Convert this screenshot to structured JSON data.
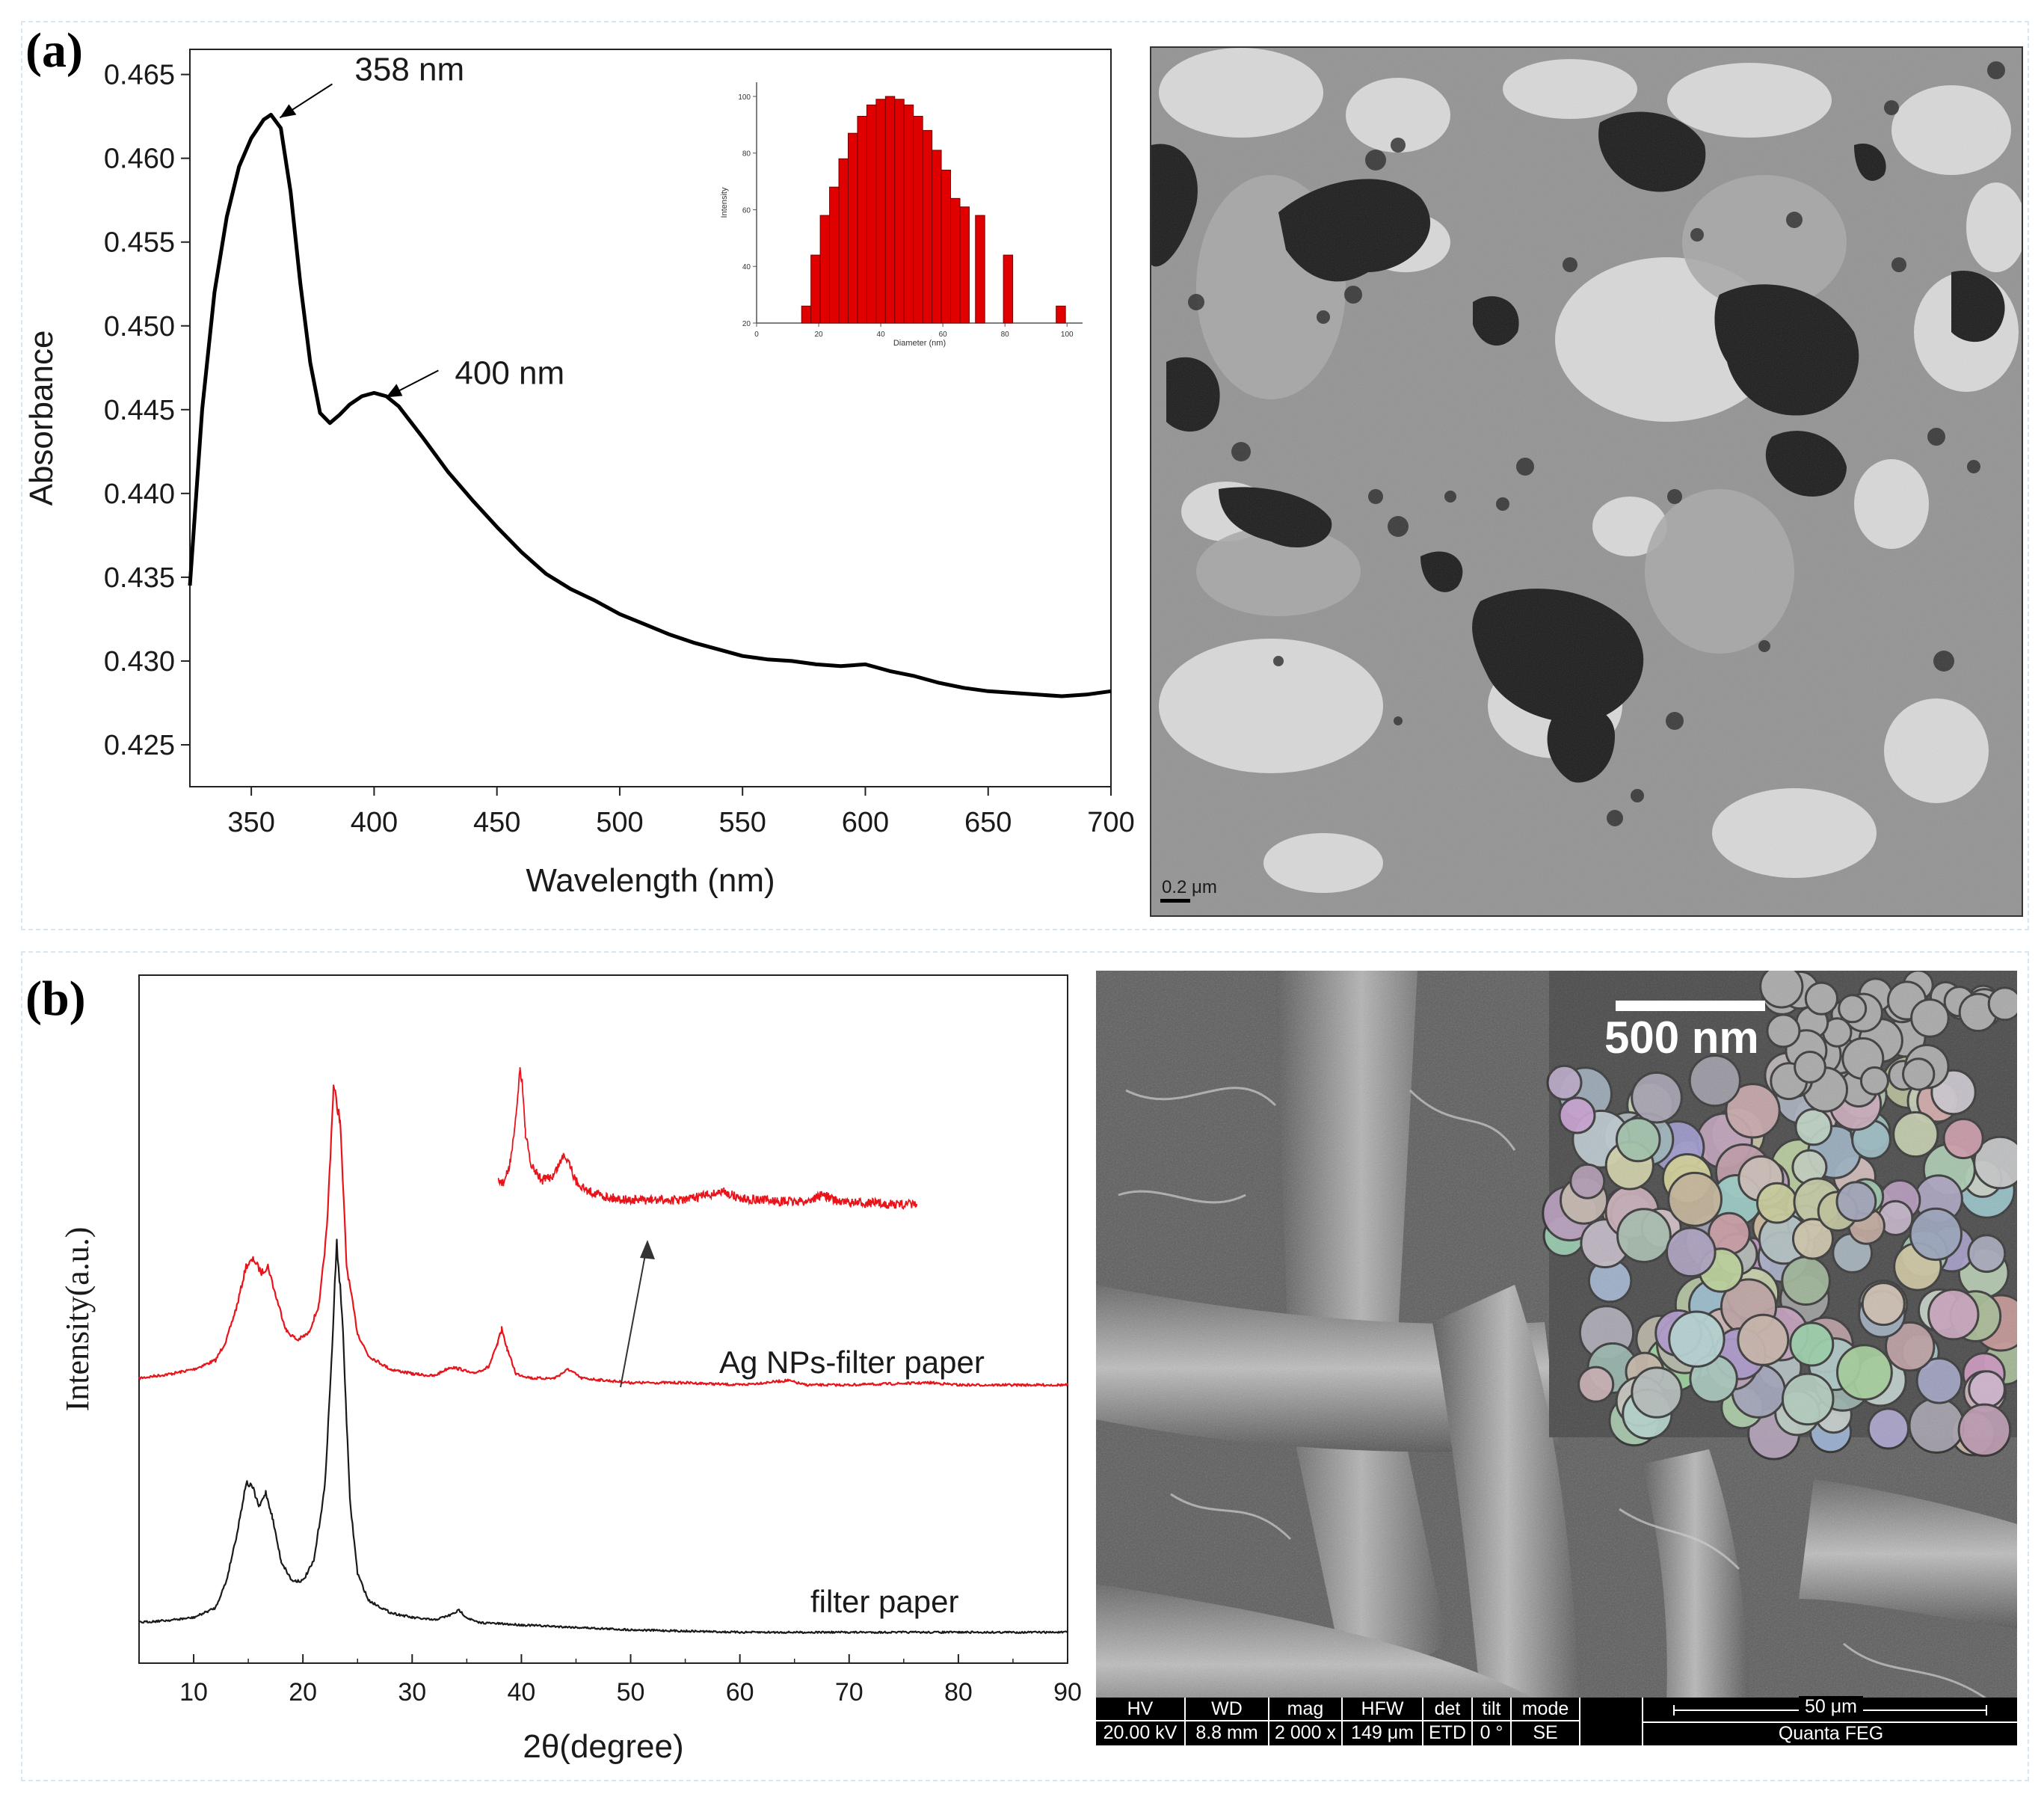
{
  "figure": {
    "panel_a_label": "(a)",
    "panel_b_label": "(b)"
  },
  "chart_data": [
    {
      "type": "line",
      "xlabel": "Wavelength (nm)",
      "ylabel": "Absorbance",
      "xlim": [
        325,
        700
      ],
      "ylim": [
        0.4225,
        0.4665
      ],
      "xticks": [
        350,
        400,
        450,
        500,
        550,
        600,
        650,
        700
      ],
      "yticks": [
        0.425,
        0.43,
        0.435,
        0.44,
        0.445,
        0.45,
        0.455,
        0.46,
        0.465
      ],
      "ytick_labels": [
        "0.425",
        "0.430",
        "0.435",
        "0.440",
        "0.445",
        "0.450",
        "0.455",
        "0.460",
        "0.465"
      ],
      "series": [
        {
          "x": [
            325,
            330,
            335,
            340,
            345,
            350,
            355,
            358,
            362,
            366,
            370,
            374,
            378,
            382,
            386,
            390,
            395,
            400,
            405,
            410,
            420,
            430,
            440,
            450,
            460,
            470,
            480,
            490,
            500,
            510,
            520,
            530,
            540,
            550,
            560,
            570,
            580,
            590,
            600,
            610,
            620,
            630,
            640,
            650,
            660,
            670,
            680,
            690,
            700
          ],
          "y": [
            0.4345,
            0.445,
            0.452,
            0.4565,
            0.4595,
            0.4612,
            0.4623,
            0.4626,
            0.4618,
            0.458,
            0.4525,
            0.4478,
            0.4448,
            0.4442,
            0.4447,
            0.4453,
            0.4458,
            0.446,
            0.4458,
            0.4452,
            0.4433,
            0.4413,
            0.4396,
            0.438,
            0.4365,
            0.4352,
            0.4343,
            0.4336,
            0.4328,
            0.4322,
            0.4316,
            0.4311,
            0.4307,
            0.4303,
            0.4301,
            0.43,
            0.4298,
            0.4297,
            0.4298,
            0.4294,
            0.4291,
            0.4287,
            0.4284,
            0.4282,
            0.4281,
            0.428,
            0.4279,
            0.428,
            0.4282
          ]
        }
      ],
      "annotations": [
        {
          "text": "358 nm",
          "x": 358,
          "y": 0.4626
        },
        {
          "text": "400 nm",
          "x": 400,
          "y": 0.446
        }
      ]
    },
    {
      "type": "bar",
      "xlabel": "Diameter (nm)",
      "ylabel": "Intensity",
      "xlim": [
        0,
        105
      ],
      "ylim": [
        20,
        105
      ],
      "xticks": [
        0,
        20,
        40,
        60,
        80,
        100
      ],
      "yticks": [
        20,
        40,
        60,
        80,
        100
      ],
      "bar_color": "#e00000",
      "x": [
        16,
        19,
        22,
        25,
        28,
        31,
        34,
        37,
        40,
        43,
        46,
        49,
        52,
        55,
        58,
        61,
        64,
        67,
        72,
        81,
        98
      ],
      "values": [
        26,
        44,
        58,
        68,
        78,
        87,
        93,
        97,
        99,
        100,
        99,
        97,
        93,
        88,
        81,
        74,
        64,
        61,
        58,
        44,
        26
      ]
    },
    {
      "type": "line",
      "xlabel": "2θ(degree)",
      "ylabel": "Intensity(a.u.)",
      "xlim": [
        5,
        90
      ],
      "xticks": [
        10,
        20,
        30,
        40,
        50,
        60,
        70,
        80,
        90
      ],
      "series": [
        {
          "name": "Ag NPs-filter paper",
          "color": "#e8141b",
          "x": [
            5,
            8,
            10,
            12,
            13,
            14,
            14.8,
            15.5,
            16.2,
            16.8,
            17.5,
            18.5,
            19.5,
            20.5,
            21.5,
            22.2,
            22.8,
            23.4,
            24,
            25,
            26,
            28,
            30,
            32,
            33.5,
            34.5,
            35.5,
            37,
            37.8,
            38.2,
            38.7,
            39.5,
            41,
            43,
            44.3,
            45.5,
            50,
            55,
            60,
            64.4,
            66,
            70,
            77.5,
            80,
            90
          ],
          "y": [
            0.05,
            0.07,
            0.09,
            0.13,
            0.22,
            0.38,
            0.55,
            0.58,
            0.52,
            0.55,
            0.42,
            0.26,
            0.22,
            0.25,
            0.38,
            0.72,
            1.35,
            1.2,
            0.55,
            0.25,
            0.15,
            0.09,
            0.07,
            0.06,
            0.1,
            0.09,
            0.07,
            0.1,
            0.2,
            0.27,
            0.18,
            0.07,
            0.05,
            0.05,
            0.09,
            0.05,
            0.03,
            0.03,
            0.02,
            0.04,
            0.02,
            0.02,
            0.03,
            0.02,
            0.02
          ]
        },
        {
          "name": "filter paper",
          "color": "#1a1a1a",
          "x": [
            5,
            8,
            10,
            12,
            13,
            14,
            14.8,
            15.4,
            16,
            16.6,
            17.2,
            18,
            19,
            20,
            21,
            22,
            22.6,
            23.1,
            23.6,
            24.3,
            25,
            26,
            28,
            30,
            32,
            33.5,
            34.3,
            35,
            36,
            40,
            45,
            50,
            60,
            70,
            80,
            90
          ],
          "y": [
            0.05,
            0.06,
            0.07,
            0.11,
            0.22,
            0.42,
            0.62,
            0.6,
            0.52,
            0.58,
            0.48,
            0.3,
            0.22,
            0.22,
            0.3,
            0.6,
            1.1,
            1.6,
            1.3,
            0.55,
            0.25,
            0.14,
            0.09,
            0.07,
            0.06,
            0.08,
            0.1,
            0.07,
            0.05,
            0.04,
            0.03,
            0.02,
            0.01,
            0.01,
            0.01,
            0.01
          ]
        }
      ],
      "inset": {
        "color": "#e8141b",
        "x": [
          38,
          38.5,
          39,
          39.5,
          40,
          40.2,
          40.5,
          41,
          42,
          43,
          44,
          44.5,
          45,
          46,
          48,
          50,
          52,
          55,
          56,
          58.5,
          60,
          62,
          64,
          66,
          67.5,
          68.5,
          70,
          72,
          74,
          76
        ],
        "y": [
          0.22,
          0.2,
          0.3,
          0.55,
          1.0,
          0.92,
          0.55,
          0.32,
          0.22,
          0.25,
          0.4,
          0.35,
          0.22,
          0.15,
          0.1,
          0.08,
          0.08,
          0.08,
          0.1,
          0.14,
          0.09,
          0.08,
          0.07,
          0.07,
          0.12,
          0.08,
          0.06,
          0.06,
          0.05,
          0.05
        ]
      }
    }
  ],
  "tem": {
    "scale_text": "0.2 μm"
  },
  "sem": {
    "inset_scale_text": "500 nm",
    "info_headers": [
      "HV",
      "WD",
      "mag",
      "HFW",
      "det",
      "tilt",
      "mode"
    ],
    "info_values": [
      "20.00 kV",
      "8.8 mm",
      "2 000 x",
      "149 μm",
      "ETD",
      "0 °",
      "SE"
    ],
    "scale_text": "50 μm",
    "instrument": "Quanta FEG"
  }
}
